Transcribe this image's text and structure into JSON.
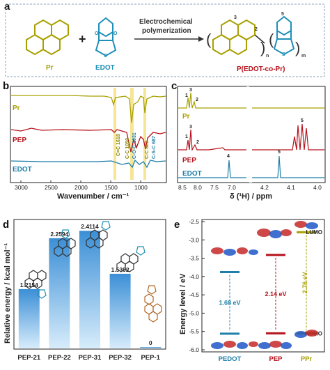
{
  "panel_a": {
    "label": "a",
    "pr_label": "Pr",
    "plus": "+",
    "edot_label": "EDOT",
    "arrow_text": [
      "Electrochemical",
      "polymerization"
    ],
    "product_label": "P(EDOT-co-Pr)",
    "n_label": "n",
    "m_label": "m",
    "site_labels": [
      "3",
      "2",
      "5"
    ],
    "s_label": "S",
    "o_label": "O",
    "colors": {
      "pr": "#a8a000",
      "edot": "#1f8fb8",
      "product": "#b5121b"
    }
  },
  "panel_b": {
    "label": "b",
    "series_labels": [
      "Pr",
      "PEP",
      "EDOT"
    ],
    "xlabel": "Wavenumber / cm⁻¹",
    "x_ticks": [
      "3000",
      "2500",
      "2000",
      "1500",
      "1000"
    ],
    "annotations": [
      "C=C 1618",
      "C-C 1050",
      "C-O-C 1031",
      "C-C 823",
      "C-S-C 687"
    ],
    "colors": {
      "pr": "#a8a000",
      "pep": "#b5121b",
      "edot": "#1f7fa8",
      "band": "#f2de7a"
    }
  },
  "panel_c": {
    "label": "c",
    "series_labels": [
      "Pr",
      "PEP",
      "EDOT"
    ],
    "xlabel": "δ (¹H) / ppm",
    "x_ticks": [
      "8.5",
      "8.0",
      "7.5",
      "7.0",
      "4.2",
      "4.1",
      "4.0"
    ],
    "peak_labels": [
      "1",
      "3",
      "2",
      "1",
      "3",
      "2",
      "5",
      "4",
      "5"
    ]
  },
  "chart_data": [
    {
      "type": "bar",
      "title": "",
      "ylabel": "Relative energy / kcal mol⁻¹",
      "xlabel": "",
      "categories": [
        "PEP-21",
        "PEP-22",
        "PEP-31",
        "PEP-32",
        "PEP-1"
      ],
      "values": [
        1.2154,
        2.2594,
        2.4114,
        1.5302,
        0
      ],
      "value_labels": [
        "1.2154",
        "2.2594",
        "2.4114",
        "1.5302",
        "0"
      ],
      "panel_label": "d",
      "colors": {
        "bar": "#3b8fd6",
        "bar_light": "#d7ecfb"
      }
    },
    {
      "type": "diagram",
      "title": "",
      "ylabel": "Energy level / eV",
      "ylim": [
        -6.0,
        -2.5
      ],
      "y_ticks": [
        "-2.5",
        "-3.0",
        "-3.5",
        "-4.0",
        "-4.5",
        "-5.0",
        "-5.5",
        "-6.0"
      ],
      "categories": [
        "PEDOT",
        "PEP",
        "PPr"
      ],
      "lumo": [
        -3.88,
        -3.41,
        -2.79
      ],
      "homo": [
        -5.56,
        -5.55,
        -5.55
      ],
      "gaps": [
        "1.68 eV",
        "2.14 eV",
        "2.76 eV"
      ],
      "level_labels": [
        "LUMO",
        "HOMO"
      ],
      "panel_label": "e",
      "colors": {
        "pedot": "#1f7fa8",
        "pep": "#b5121b",
        "ppr": "#a8a000"
      }
    }
  ]
}
